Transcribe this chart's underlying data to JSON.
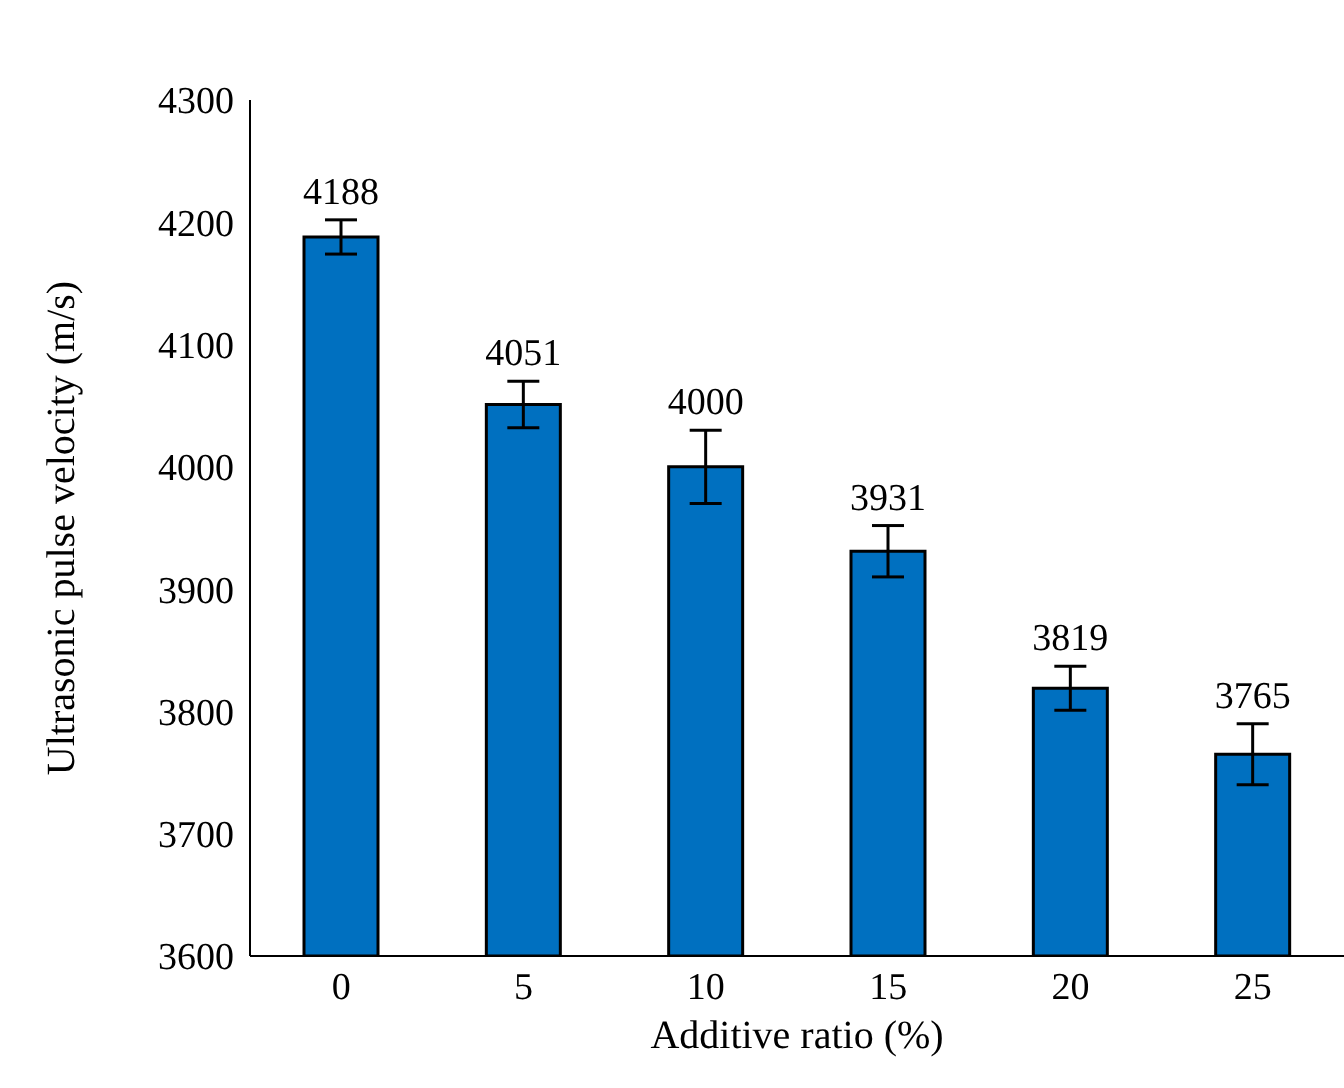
{
  "chart_data": {
    "type": "bar",
    "xlabel": "Additive ratio (%)",
    "ylabel": "Ultrasonic pulse velocity (m/s)",
    "categories": [
      "0",
      "5",
      "10",
      "15",
      "20",
      "25"
    ],
    "values": [
      4188,
      4051,
      4000,
      3931,
      3819,
      3765
    ],
    "errors": [
      14,
      19,
      30,
      21,
      18,
      25
    ],
    "color": "#0070c0",
    "data_labels": true,
    "ylim": [
      3600,
      4300
    ],
    "yticks": [
      3600,
      3700,
      3800,
      3900,
      4000,
      4100,
      4200,
      4300
    ],
    "grid": false
  }
}
